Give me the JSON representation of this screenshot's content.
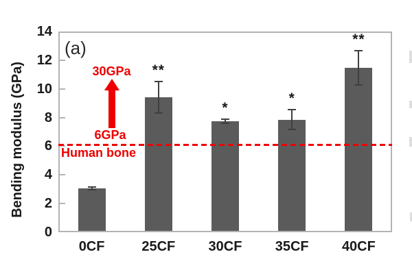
{
  "figure": {
    "panel_label": "(a)"
  },
  "chart_data": {
    "type": "bar",
    "title": "",
    "ylabel": "Bending modulus (GPa)",
    "xlabel": "",
    "categories": [
      "0CF",
      "25CF",
      "30CF",
      "35CF",
      "40CF"
    ],
    "values": [
      3.05,
      9.4,
      7.75,
      7.85,
      11.45
    ],
    "error_bars": [
      0.1,
      1.1,
      0.15,
      0.7,
      1.2
    ],
    "significance_labels": [
      "",
      "**",
      "*",
      "*",
      "**"
    ],
    "ylim": [
      0,
      14
    ],
    "yticks": [
      0,
      2,
      4,
      6,
      8,
      10,
      12,
      14
    ],
    "grid": false,
    "legend": false,
    "bar_color": "#5b5b5b",
    "error_bar_color": "#3f3f3f",
    "axis_color": "#b3b3b3",
    "text_color": "#1a1a1a",
    "accent_red": "#ee0000",
    "reference_line": {
      "value": 6.1,
      "style": "dashed",
      "color": "#ee0000",
      "label": "Human bone"
    },
    "arrow_annotation": {
      "direction": "up",
      "from_label": "6GPa",
      "to_label": "30GPa",
      "color": "#ee0000"
    }
  }
}
